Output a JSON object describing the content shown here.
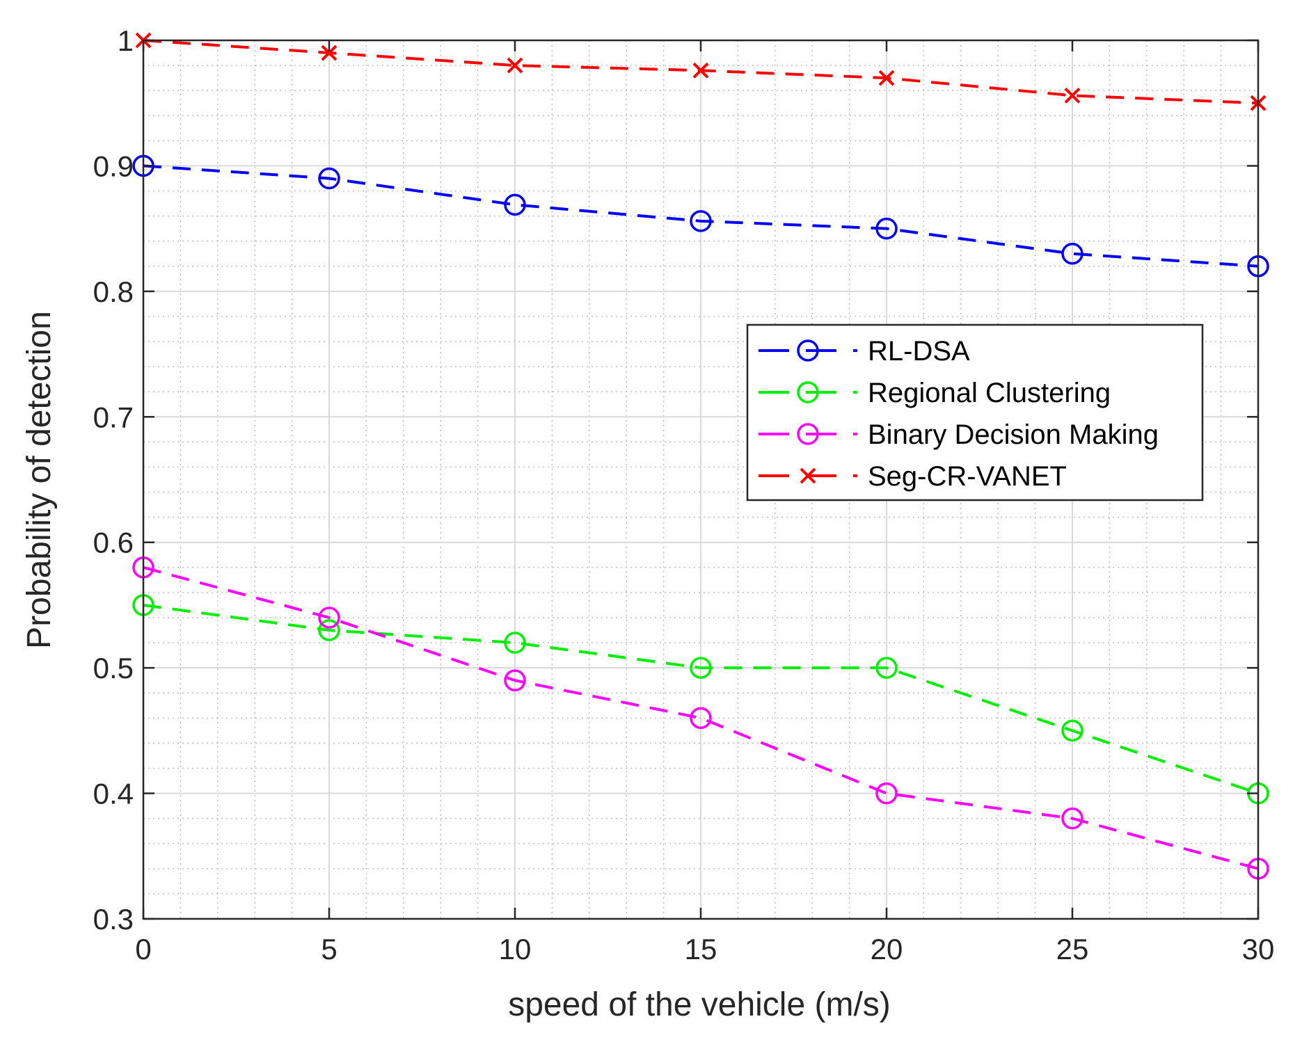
{
  "chart_data": {
    "type": "line",
    "title": "",
    "xlabel": "speed of the vehicle (m/s)",
    "ylabel": "Probability of detection",
    "xlim": [
      0,
      30
    ],
    "ylim": [
      0.3,
      1.0
    ],
    "xticks": [
      0,
      5,
      10,
      15,
      20,
      25,
      30
    ],
    "xtick_labels": [
      "0",
      "5",
      "10",
      "15",
      "20",
      "25",
      "30"
    ],
    "yticks": [
      0.3,
      0.4,
      0.5,
      0.6,
      0.7,
      0.8,
      0.9,
      1.0
    ],
    "ytick_labels": [
      "0.3",
      "0.4",
      "0.5",
      "0.6",
      "0.7",
      "0.8",
      "0.9",
      "1"
    ],
    "grid": true,
    "minor_grid": true,
    "legend_location": "center-right",
    "x": [
      0,
      5,
      10,
      15,
      20,
      25,
      30
    ],
    "series": [
      {
        "name": "RL-DSA",
        "color": "#0000ff",
        "marker": "circle",
        "values": [
          0.9,
          0.89,
          0.869,
          0.856,
          0.85,
          0.83,
          0.82
        ]
      },
      {
        "name": "Regional Clustering",
        "color": "#00ee00",
        "marker": "circle",
        "values": [
          0.55,
          0.53,
          0.52,
          0.5,
          0.5,
          0.45,
          0.4
        ]
      },
      {
        "name": "Binary Decision Making",
        "color": "#ff00ff",
        "marker": "circle",
        "values": [
          0.58,
          0.54,
          0.49,
          0.46,
          0.4,
          0.38,
          0.34
        ]
      },
      {
        "name": "Seg-CR-VANET",
        "color": "#ff0000",
        "marker": "cross",
        "values": [
          1.0,
          0.99,
          0.98,
          0.976,
          0.97,
          0.956,
          0.95
        ]
      }
    ]
  }
}
